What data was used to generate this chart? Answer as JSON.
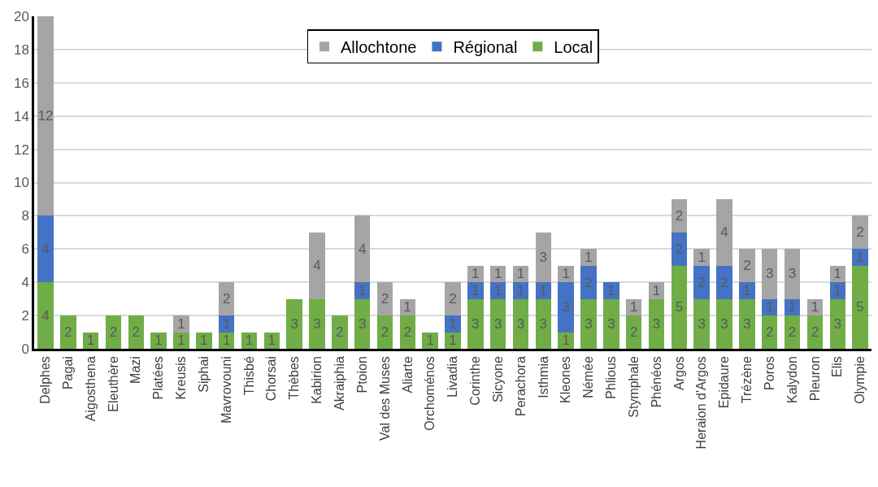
{
  "chart_data": {
    "type": "bar",
    "stacked": true,
    "categories": [
      "Delphes",
      "Pagai",
      "Aigosthena",
      "Eleuthère",
      "Mazi",
      "Platées",
      "Kreusis",
      "Siphai",
      "Mavrovouni",
      "Thisbé",
      "Chorsai",
      "Thèbes",
      "Kabirion",
      "Akraiphia",
      "Ptoion",
      "Val des Muses",
      "Aliarte",
      "Orchoménos",
      "Livadia",
      "Corinthe",
      "Sicyone",
      "Perachora",
      "Isthmia",
      "Kleones",
      "Némée",
      "Phlious",
      "Stymphale",
      "Phénéos",
      "Argos",
      "Heraion d'Argos",
      "Epidaure",
      "Trézène",
      "Poros",
      "Kalydon",
      "Pleuron",
      "Elis",
      "Olympie"
    ],
    "series": [
      {
        "name": "Local",
        "color": "#70ad47",
        "values": [
          4,
          2,
          1,
          2,
          2,
          1,
          1,
          1,
          1,
          1,
          1,
          3,
          3,
          2,
          3,
          2,
          2,
          1,
          1,
          3,
          3,
          3,
          3,
          1,
          3,
          3,
          2,
          3,
          5,
          3,
          3,
          3,
          2,
          2,
          2,
          3,
          5
        ]
      },
      {
        "name": "Régional",
        "color": "#4472c4",
        "values": [
          4,
          null,
          null,
          null,
          null,
          null,
          null,
          null,
          1,
          null,
          null,
          null,
          null,
          null,
          1,
          null,
          null,
          null,
          1,
          1,
          1,
          1,
          1,
          3,
          2,
          1,
          null,
          null,
          2,
          2,
          2,
          1,
          1,
          1,
          null,
          1,
          1
        ]
      },
      {
        "name": "Allochtone",
        "color": "#a5a5a5",
        "values": [
          12,
          null,
          null,
          null,
          null,
          null,
          1,
          null,
          2,
          null,
          null,
          null,
          4,
          null,
          4,
          2,
          1,
          null,
          2,
          1,
          1,
          1,
          3,
          1,
          1,
          null,
          1,
          1,
          2,
          1,
          4,
          2,
          3,
          3,
          1,
          1,
          2
        ]
      }
    ],
    "ylim": [
      0,
      20
    ],
    "yticks": [
      0,
      2,
      4,
      6,
      8,
      10,
      12,
      14,
      16,
      18,
      20
    ],
    "grid": "y",
    "legend": "top",
    "data_labels": true
  }
}
